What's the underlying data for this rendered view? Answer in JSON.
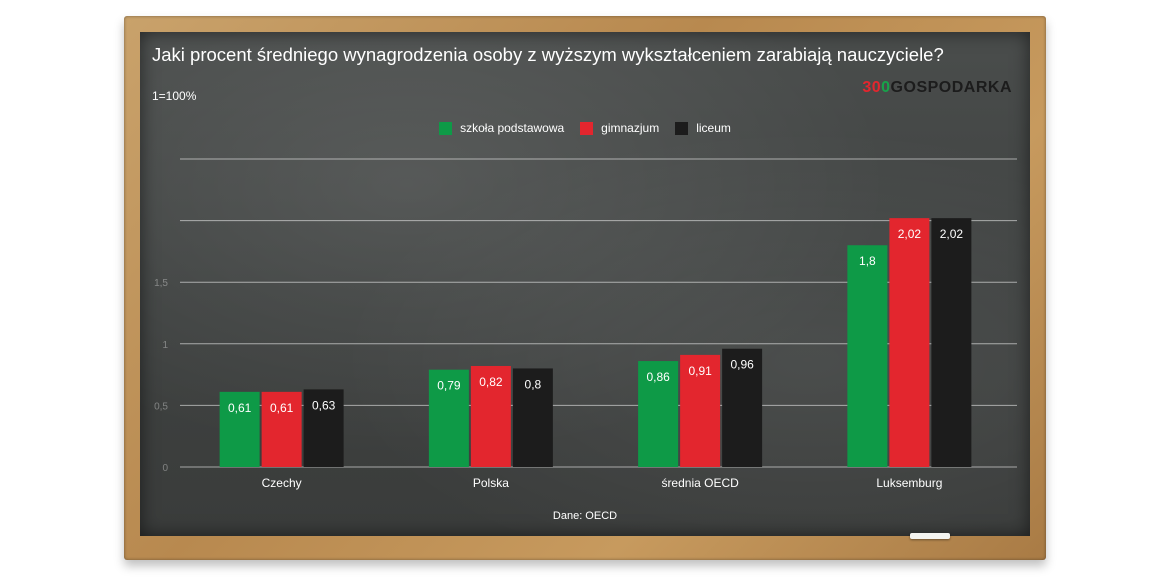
{
  "title": "Jaki procent średniego wynagrodzenia osoby z wyższym wykształceniem zarabiają nauczyciele?",
  "unit_note": "1=100%",
  "logo": {
    "part1": "3",
    "part2": "0",
    "part3": "0",
    "part4": "GOSPODARKA"
  },
  "source": "Dane: OECD",
  "colors": {
    "primary": "#0e9a47",
    "secondary": "#e3262e",
    "tertiary": "#1c1c1c"
  },
  "chart_data": {
    "type": "bar",
    "categories": [
      "Czechy",
      "Polska",
      "średnia OECD",
      "Luksemburg"
    ],
    "series": [
      {
        "name": "szkoła podstawowa",
        "values": [
          0.61,
          0.79,
          0.86,
          1.8
        ]
      },
      {
        "name": "gimnazjum",
        "values": [
          0.61,
          0.82,
          0.91,
          2.02
        ]
      },
      {
        "name": "liceum",
        "values": [
          0.63,
          0.8,
          0.96,
          2.02
        ]
      }
    ],
    "ylim": [
      0,
      2.5
    ],
    "yticks": [
      0,
      0.5,
      1,
      1.5,
      2,
      2.5
    ],
    "ytick_labels": [
      "0",
      "0,5",
      "1",
      "1,5",
      "",
      ""
    ],
    "data_labels": [
      [
        "0,61",
        "0,79",
        "0,86",
        "1,8"
      ],
      [
        "0,61",
        "0,82",
        "0,91",
        "2,02"
      ],
      [
        "0,63",
        "0,8",
        "0,96",
        "2,02"
      ]
    ],
    "grid": true,
    "legend_position": "top-center"
  }
}
